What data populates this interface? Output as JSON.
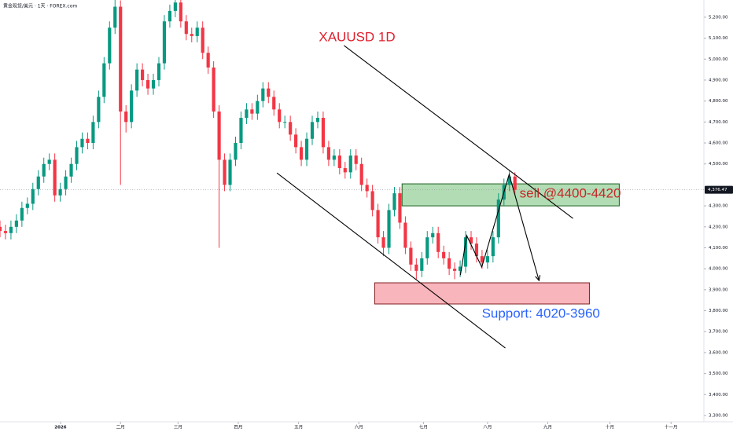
{
  "chart_data": {
    "type": "candlestick",
    "header": "黄金现货/美元 · 1天 · FOREX.com",
    "title": "XAUUSD 1D",
    "title_pos": {
      "x": 116.4,
      "y": 5102
    },
    "title_color": "#e0202e",
    "up_color": "#089981",
    "down_color": "#f23645",
    "x": [
      0,
      2,
      4,
      6,
      8,
      10,
      12,
      14,
      16,
      18,
      20,
      22,
      24,
      26,
      28,
      30,
      32,
      34,
      36,
      38,
      40,
      42,
      44,
      46,
      48,
      50,
      52,
      54,
      56,
      58,
      60,
      62,
      64,
      66,
      68,
      70,
      72,
      74,
      76,
      78,
      80,
      82,
      84,
      86,
      88,
      90,
      92,
      94,
      96,
      98,
      100,
      102,
      104,
      106,
      108,
      110,
      112,
      114,
      116,
      118,
      120,
      122,
      124,
      126,
      128,
      130,
      132,
      134,
      136,
      138,
      140,
      142,
      144,
      146,
      148,
      150,
      152,
      154,
      156,
      158,
      160,
      162,
      164,
      166,
      168,
      170,
      172,
      174,
      176,
      178,
      180,
      182,
      184,
      186,
      188
    ],
    "open": [
      4200,
      4180,
      4170,
      4200,
      4230,
      4290,
      4310,
      4380,
      4440,
      4500,
      4520,
      4350,
      4380,
      4440,
      4500,
      4580,
      4620,
      4600,
      4700,
      4820,
      4980,
      5150,
      5250,
      4750,
      4700,
      4850,
      4950,
      4900,
      4860,
      4900,
      4980,
      5180,
      5230,
      5270,
      5180,
      5120,
      5110,
      5150,
      5030,
      4960,
      4750,
      4520,
      4400,
      4520,
      4600,
      4720,
      4760,
      4740,
      4800,
      4860,
      4820,
      4760,
      4700,
      4700,
      4640,
      4580,
      4520,
      4620,
      4700,
      4720,
      4580,
      4520,
      4540,
      4480,
      4460,
      4540,
      4500,
      4400,
      4370,
      4280,
      4150,
      4100,
      4280,
      4360,
      4220,
      4100,
      4020,
      3990,
      4050,
      4150,
      4170,
      4080,
      4050,
      4000,
      3990,
      4010,
      4150,
      4120,
      4060,
      4030,
      4060,
      4150,
      4330,
      4400,
      4440
    ],
    "high": [
      4230,
      4210,
      4230,
      4260,
      4320,
      4340,
      4410,
      4470,
      4530,
      4550,
      4550,
      4410,
      4470,
      4530,
      4610,
      4650,
      4650,
      4730,
      4850,
      5010,
      5180,
      5320,
      5280,
      4780,
      4880,
      4980,
      4980,
      4930,
      4930,
      5010,
      5210,
      5260,
      5320,
      5300,
      5210,
      5150,
      5180,
      5180,
      5060,
      4990,
      4780,
      4550,
      4550,
      4630,
      4750,
      4790,
      4790,
      4830,
      4890,
      4890,
      4850,
      4790,
      4730,
      4730,
      4670,
      4610,
      4650,
      4730,
      4750,
      4750,
      4610,
      4570,
      4570,
      4510,
      4570,
      4570,
      4530,
      4430,
      4400,
      4310,
      4180,
      4310,
      4390,
      4390,
      4250,
      4130,
      4050,
      4080,
      4180,
      4200,
      4200,
      4110,
      4080,
      4030,
      4040,
      4180,
      4180,
      4150,
      4090,
      4090,
      4180,
      4360,
      4430,
      4470,
      4460
    ],
    "low": [
      4150,
      4140,
      4140,
      4170,
      4200,
      4260,
      4280,
      4350,
      4410,
      4470,
      4320,
      4320,
      4350,
      4410,
      4470,
      4550,
      4570,
      4570,
      4670,
      4790,
      4950,
      5120,
      4400,
      4650,
      4670,
      4820,
      4870,
      4830,
      4830,
      4870,
      4950,
      5150,
      5200,
      5150,
      5090,
      5080,
      5080,
      5000,
      4930,
      4720,
      4100,
      4370,
      4370,
      4490,
      4570,
      4690,
      4710,
      4710,
      4770,
      4790,
      4730,
      4670,
      4670,
      4610,
      4550,
      4490,
      4490,
      4590,
      4670,
      4550,
      4490,
      4490,
      4450,
      4430,
      4430,
      4470,
      4370,
      4340,
      4250,
      4120,
      4060,
      4070,
      4250,
      4190,
      4070,
      3990,
      3950,
      3960,
      4020,
      4120,
      4050,
      4020,
      3970,
      3950,
      3960,
      3980,
      4090,
      4030,
      4000,
      4000,
      4030,
      4120,
      4300,
      4370,
      4350
    ],
    "close": [
      4180,
      4170,
      4200,
      4230,
      4290,
      4310,
      4380,
      4440,
      4500,
      4520,
      4350,
      4380,
      4440,
      4500,
      4580,
      4620,
      4600,
      4700,
      4820,
      4980,
      5150,
      5250,
      4750,
      4700,
      4850,
      4950,
      4900,
      4860,
      4900,
      4980,
      5180,
      5230,
      5270,
      5180,
      5120,
      5110,
      5150,
      5030,
      4960,
      4750,
      4520,
      4400,
      4520,
      4600,
      4720,
      4760,
      4740,
      4800,
      4860,
      4820,
      4760,
      4700,
      4700,
      4640,
      4580,
      4520,
      4620,
      4700,
      4720,
      4580,
      4520,
      4540,
      4480,
      4460,
      4540,
      4500,
      4400,
      4370,
      4280,
      4150,
      4100,
      4280,
      4360,
      4220,
      4100,
      4020,
      3990,
      4050,
      4150,
      4170,
      4080,
      4050,
      4000,
      3990,
      4010,
      4150,
      4120,
      4060,
      4030,
      4060,
      4150,
      4330,
      4400,
      4440,
      4376.47
    ],
    "xlim": [
      0,
      257
    ],
    "ylim": [
      3270,
      5282
    ],
    "yticks": [
      {
        "value": 3300,
        "label": "3,300.00"
      },
      {
        "value": 3400,
        "label": "3,400.00"
      },
      {
        "value": 3500,
        "label": "3,500.00"
      },
      {
        "value": 3600,
        "label": "3,600.00"
      },
      {
        "value": 3700,
        "label": "3,700.00"
      },
      {
        "value": 3800,
        "label": "3,800.00"
      },
      {
        "value": 3900,
        "label": "3,900.00"
      },
      {
        "value": 4000,
        "label": "4,000.00"
      },
      {
        "value": 4100,
        "label": "4,100.00"
      },
      {
        "value": 4200,
        "label": "4,200.00"
      },
      {
        "value": 4300,
        "label": "4,300.00"
      },
      {
        "value": 4500,
        "label": "4,500.00"
      },
      {
        "value": 4600,
        "label": "4,600.00"
      },
      {
        "value": 4700,
        "label": "4,700.00"
      },
      {
        "value": 4800,
        "label": "4,800.00"
      },
      {
        "value": 4900,
        "label": "4,900.00"
      },
      {
        "value": 5000,
        "label": "5,000.00"
      },
      {
        "value": 5100,
        "label": "5,100.00"
      },
      {
        "value": 5200,
        "label": "5,200.00"
      }
    ],
    "xticks": [
      {
        "value": 22.1,
        "label": "2026"
      },
      {
        "value": 44,
        "label": "二月"
      },
      {
        "value": 65,
        "label": "三月"
      },
      {
        "value": 87,
        "label": "四月"
      },
      {
        "value": 109,
        "label": "五月"
      },
      {
        "value": 131,
        "label": "六月"
      },
      {
        "value": 154.6,
        "label": "七月"
      },
      {
        "value": 178,
        "label": "八月"
      },
      {
        "value": 200,
        "label": "九月"
      },
      {
        "value": 222.7,
        "label": "十月"
      },
      {
        "value": 245,
        "label": "十一月"
      }
    ],
    "last_price": {
      "value": 4376.47,
      "label": "4,376.47"
    },
    "zones": [
      {
        "x": [
          146.8,
          226.1
        ],
        "y": [
          4300,
          4405
        ],
        "fill": "#a5d6a7",
        "stroke": "#1b5e20"
      },
      {
        "x": [
          136.8,
          215.2
        ],
        "y": [
          3832,
          3933
        ],
        "fill": "#f8a8b0",
        "stroke": "#7f1d1d"
      }
    ],
    "lines": [
      {
        "x": [
          125.6,
          209.2
        ],
        "y": [
          5065,
          4240
        ],
        "color": "#000000",
        "arrow": false
      },
      {
        "x": [
          101.1,
          184.5
        ],
        "y": [
          4457,
          3622
        ],
        "color": "#000000",
        "arrow": false
      },
      {
        "x": [
          168.1,
          170.4,
          175.9,
          185.9,
          196.8
        ],
        "y": [
          3970,
          4158,
          4008,
          4450,
          3944
        ],
        "color": "#000000",
        "arrow": true
      }
    ],
    "annotations": [
      {
        "text": "sell @4400-4420",
        "x": 189.7,
        "y": 4356,
        "color": "#c62828"
      },
      {
        "text": "Support: 4020-3960",
        "x": 175.9,
        "y": 3783,
        "color": "#2962ff"
      }
    ]
  }
}
